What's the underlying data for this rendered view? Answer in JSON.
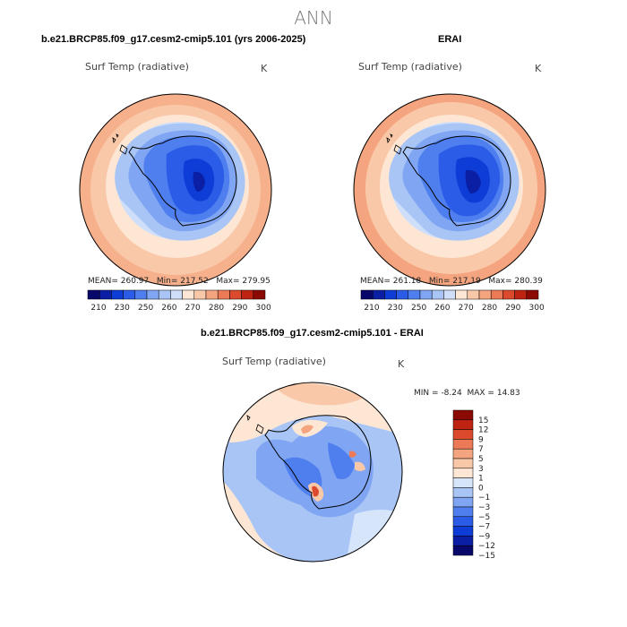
{
  "page": {
    "title": "ANN"
  },
  "panels": [
    {
      "title": "b.e21.BRCP85.f09_g17.cesm2-cmip5.101 (yrs 2006-2025)",
      "variable": "Surf Temp (radiative)",
      "units": "K",
      "stats": {
        "mean_label": "MEAN=",
        "mean": "260.97",
        "min_label": "Min=",
        "min": "217.52",
        "max_label": "Max=",
        "max": "279.95"
      }
    },
    {
      "title": "ERAI",
      "variable": "Surf Temp (radiative)",
      "units": "K",
      "stats": {
        "mean_label": "MEAN=",
        "mean": "261.18",
        "min_label": "Min=",
        "min": "217.19",
        "max_label": "Max=",
        "max": "280.39"
      }
    },
    {
      "title": "b.e21.BRCP85.f09_g17.cesm2-cmip5.101 - ERAI",
      "variable": "Surf Temp (radiative)",
      "units": "K",
      "stats": {
        "min_label": "MIN =",
        "min": "-8.24",
        "max_label": "MAX =",
        "max": "14.83"
      }
    }
  ],
  "chart_data": [
    {
      "type": "heatmap",
      "projection": "south-polar-stereographic",
      "title": "b.e21.BRCP85.f09_g17.cesm2-cmip5.101 (yrs 2006-2025)",
      "variable": "Surf Temp (radiative)",
      "units": "K",
      "mean": 260.97,
      "min": 217.52,
      "max": 279.95,
      "levels": [
        210,
        220,
        230,
        240,
        250,
        255,
        260,
        265,
        270,
        275,
        280,
        285,
        290,
        295,
        300
      ],
      "tick_labels": [
        "210",
        "230",
        "250",
        "260",
        "270",
        "280",
        "290",
        "300"
      ]
    },
    {
      "type": "heatmap",
      "projection": "south-polar-stereographic",
      "title": "ERAI",
      "variable": "Surf Temp (radiative)",
      "units": "K",
      "mean": 261.18,
      "min": 217.19,
      "max": 280.39,
      "levels": [
        210,
        220,
        230,
        240,
        250,
        255,
        260,
        265,
        270,
        275,
        280,
        285,
        290,
        295,
        300
      ],
      "tick_labels": [
        "210",
        "230",
        "250",
        "260",
        "270",
        "280",
        "290",
        "300"
      ]
    },
    {
      "type": "heatmap",
      "projection": "south-polar-stereographic",
      "title": "b.e21.BRCP85.f09_g17.cesm2-cmip5.101 - ERAI",
      "variable": "Surf Temp (radiative)",
      "units": "K",
      "min": -8.24,
      "max": 14.83,
      "levels": [
        -15,
        -12,
        -9,
        -7,
        -5,
        -3,
        -1,
        0,
        1,
        3,
        5,
        7,
        9,
        12,
        15
      ],
      "tick_labels": [
        "15",
        "12",
        "9",
        "7",
        "5",
        "3",
        "1",
        "0",
        "−1",
        "−3",
        "−5",
        "−7",
        "−9",
        "−12",
        "−15"
      ]
    }
  ],
  "colors": {
    "abs_scale": [
      "#08086b",
      "#0a1fa3",
      "#0d3dd6",
      "#2a5ce8",
      "#4f7fee",
      "#7fa5f3",
      "#a9c5f6",
      "#cfdffa",
      "#fde6d4",
      "#f9c8a8",
      "#f4a47e",
      "#ec7a56",
      "#dc4a2e",
      "#bf2412",
      "#8c0a04"
    ],
    "diff_scale": [
      "#08086b",
      "#0a1fa3",
      "#0d3dd6",
      "#2a5ce8",
      "#4f7fee",
      "#7fa5f3",
      "#a9c5f6",
      "#d7e5fb",
      "#fde6d4",
      "#f9c8a8",
      "#f4a47e",
      "#ec7a56",
      "#dc4a2e",
      "#bf2412",
      "#8c0a04"
    ]
  }
}
